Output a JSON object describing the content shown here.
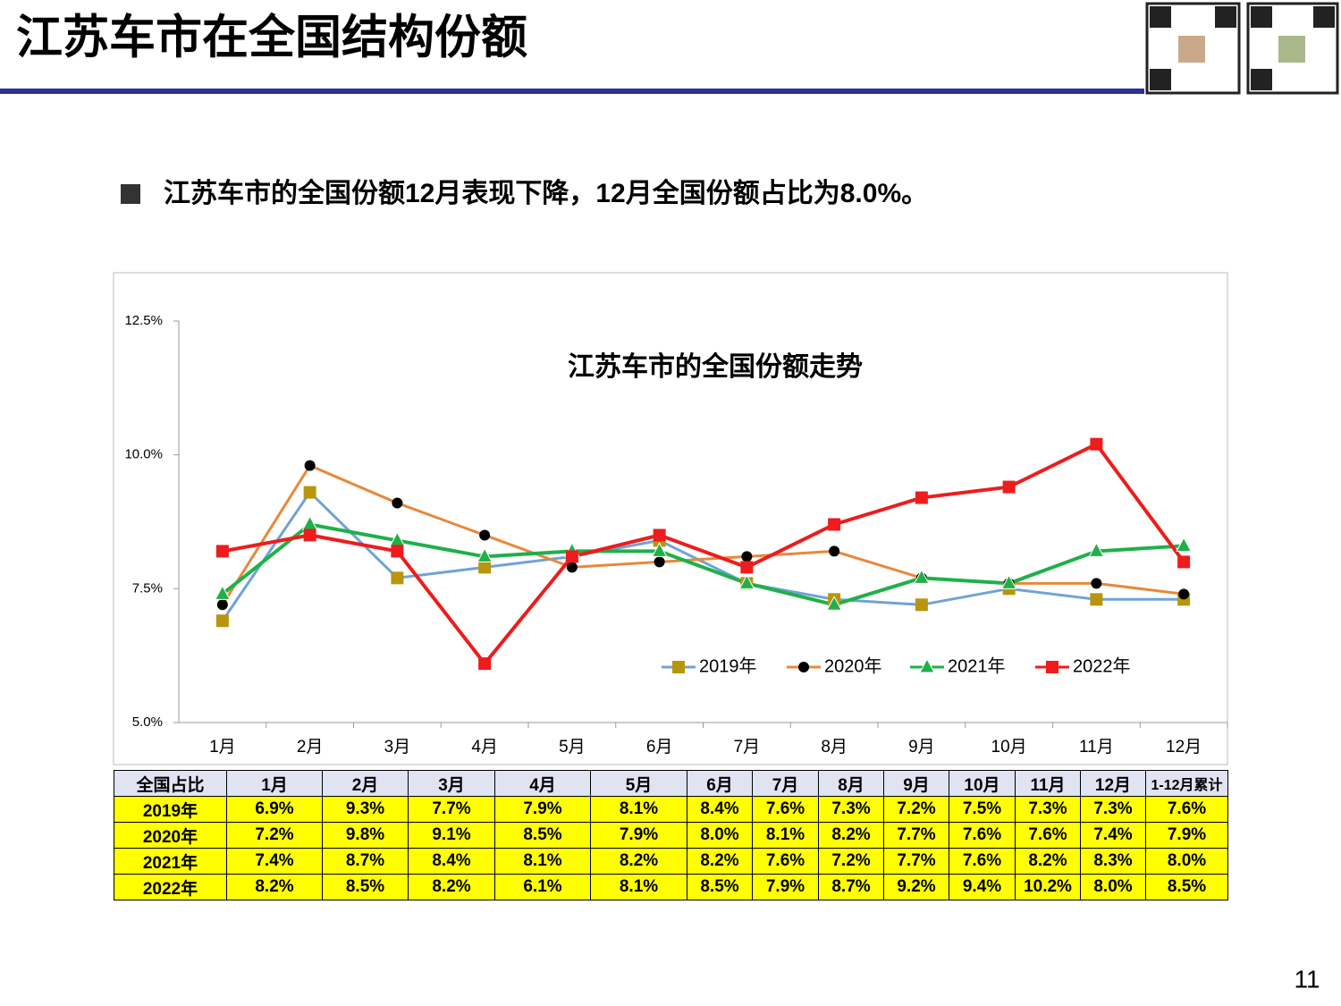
{
  "header": {
    "title": "江苏车市在全国结构份额"
  },
  "bullet": "江苏车市的全国份额12月表现下降，12月全国份额占比为8.0%。",
  "chart_data": {
    "type": "line",
    "title": "江苏车市的全国份额走势",
    "categories": [
      "1月",
      "2月",
      "3月",
      "4月",
      "5月",
      "6月",
      "7月",
      "8月",
      "9月",
      "10月",
      "11月",
      "12月"
    ],
    "ylim": [
      5,
      12.5
    ],
    "yticks": [
      {
        "value": 5,
        "label": "5.0%"
      },
      {
        "value": 7.5,
        "label": "7.5%"
      },
      {
        "value": 10,
        "label": "10.0%"
      },
      {
        "value": 12.5,
        "label": "12.5%"
      }
    ],
    "series": [
      {
        "name": "2019年",
        "color": "#6fa3d6",
        "marker": "square",
        "marker_color": "#b8960c",
        "values": [
          6.9,
          9.3,
          7.7,
          7.9,
          8.1,
          8.4,
          7.6,
          7.3,
          7.2,
          7.5,
          7.3,
          7.3
        ]
      },
      {
        "name": "2020年",
        "color": "#e8883a",
        "marker": "circle",
        "marker_color": "#000000",
        "values": [
          7.2,
          9.8,
          9.1,
          8.5,
          7.9,
          8.0,
          8.1,
          8.2,
          7.7,
          7.6,
          7.6,
          7.4
        ]
      },
      {
        "name": "2021年",
        "color": "#1fb04a",
        "marker": "triangle",
        "marker_color": "#1fb04a",
        "values": [
          7.4,
          8.7,
          8.4,
          8.1,
          8.2,
          8.2,
          7.6,
          7.2,
          7.7,
          7.6,
          8.2,
          8.3
        ]
      },
      {
        "name": "2022年",
        "color": "#ee1c1c",
        "marker": "square",
        "marker_color": "#ee1c1c",
        "values": [
          8.2,
          8.5,
          8.2,
          6.1,
          8.1,
          8.5,
          7.9,
          8.7,
          9.2,
          9.4,
          10.2,
          8.0
        ]
      }
    ]
  },
  "table": {
    "header": [
      "全国占比",
      "1月",
      "2月",
      "3月",
      "4月",
      "5月",
      "6月",
      "7月",
      "8月",
      "9月",
      "10月",
      "11月",
      "12月",
      "1-12月累计"
    ],
    "rows": [
      [
        "2019年",
        "6.9%",
        "9.3%",
        "7.7%",
        "7.9%",
        "8.1%",
        "8.4%",
        "7.6%",
        "7.3%",
        "7.2%",
        "7.5%",
        "7.3%",
        "7.3%",
        "7.6%"
      ],
      [
        "2020年",
        "7.2%",
        "9.8%",
        "9.1%",
        "8.5%",
        "7.9%",
        "8.0%",
        "8.1%",
        "8.2%",
        "7.7%",
        "7.6%",
        "7.6%",
        "7.4%",
        "7.9%"
      ],
      [
        "2021年",
        "7.4%",
        "8.7%",
        "8.4%",
        "8.1%",
        "8.2%",
        "8.2%",
        "7.6%",
        "7.2%",
        "7.7%",
        "7.6%",
        "8.2%",
        "8.3%",
        "8.0%"
      ],
      [
        "2022年",
        "8.2%",
        "8.5%",
        "8.2%",
        "6.1%",
        "8.1%",
        "8.5%",
        "7.9%",
        "8.7%",
        "9.2%",
        "9.4%",
        "10.2%",
        "8.0%",
        "8.5%"
      ]
    ]
  },
  "page_number": "11"
}
